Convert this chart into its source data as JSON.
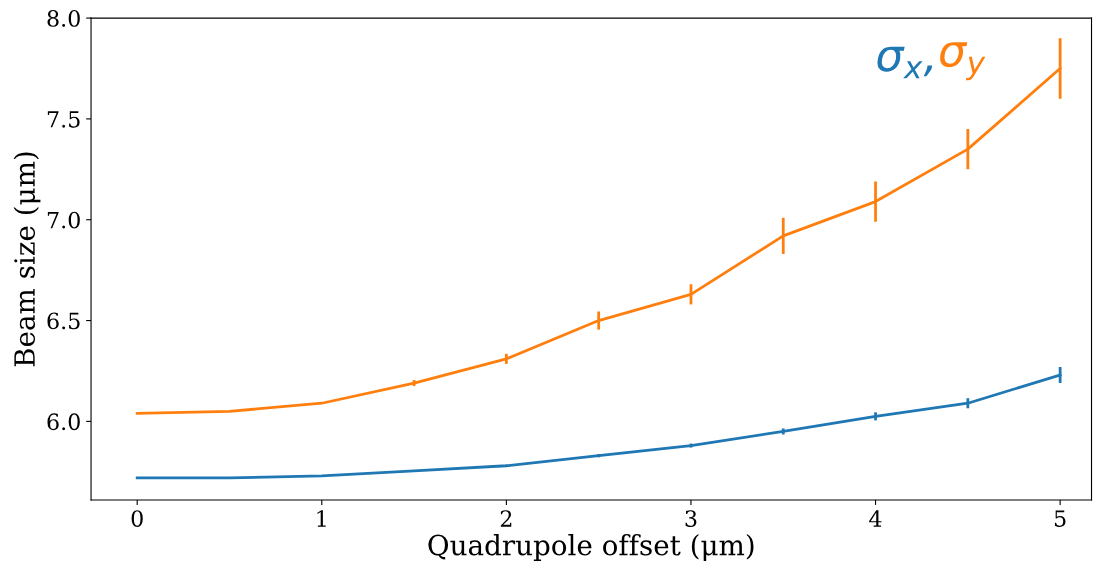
{
  "chart_data": {
    "type": "line",
    "xlabel": "Quadrupole offset (μm)",
    "ylabel": "Beam size (μm)",
    "x": [
      0,
      0.5,
      1,
      1.5,
      2,
      2.5,
      3,
      3.5,
      4,
      4.5,
      5
    ],
    "series": [
      {
        "name": "σ$_{x}$,",
        "color": "#1f77b4",
        "values": [
          5.72,
          5.72,
          5.73,
          5.755,
          5.78,
          5.83,
          5.88,
          5.95,
          6.025,
          6.09,
          6.23
        ],
        "errors": [
          null,
          null,
          null,
          null,
          0.005,
          0.008,
          0.01,
          0.015,
          0.02,
          0.025,
          0.04
        ]
      },
      {
        "name": "σ$_{y}$",
        "color": "#ff7f0e",
        "values": [
          6.04,
          6.05,
          6.09,
          6.19,
          6.31,
          6.5,
          6.63,
          6.92,
          7.09,
          7.35,
          7.75
        ],
        "errors": [
          null,
          null,
          null,
          0.015,
          0.025,
          0.045,
          0.05,
          0.09,
          0.1,
          0.1,
          0.15
        ]
      }
    ],
    "xlim": [
      -0.25,
      5.17
    ],
    "ylim": [
      5.61,
      8.0
    ],
    "xticks": [
      0,
      1,
      2,
      3,
      4,
      5
    ],
    "yticks": [
      {
        "value": 6,
        "label": "6.0"
      },
      6.5,
      {
        "value": 7,
        "label": "7.0"
      },
      7.5,
      {
        "value": 8,
        "label": "8.0"
      }
    ],
    "grid": false,
    "legend": "top right",
    "marker": "none",
    "line_style": "solid"
  }
}
